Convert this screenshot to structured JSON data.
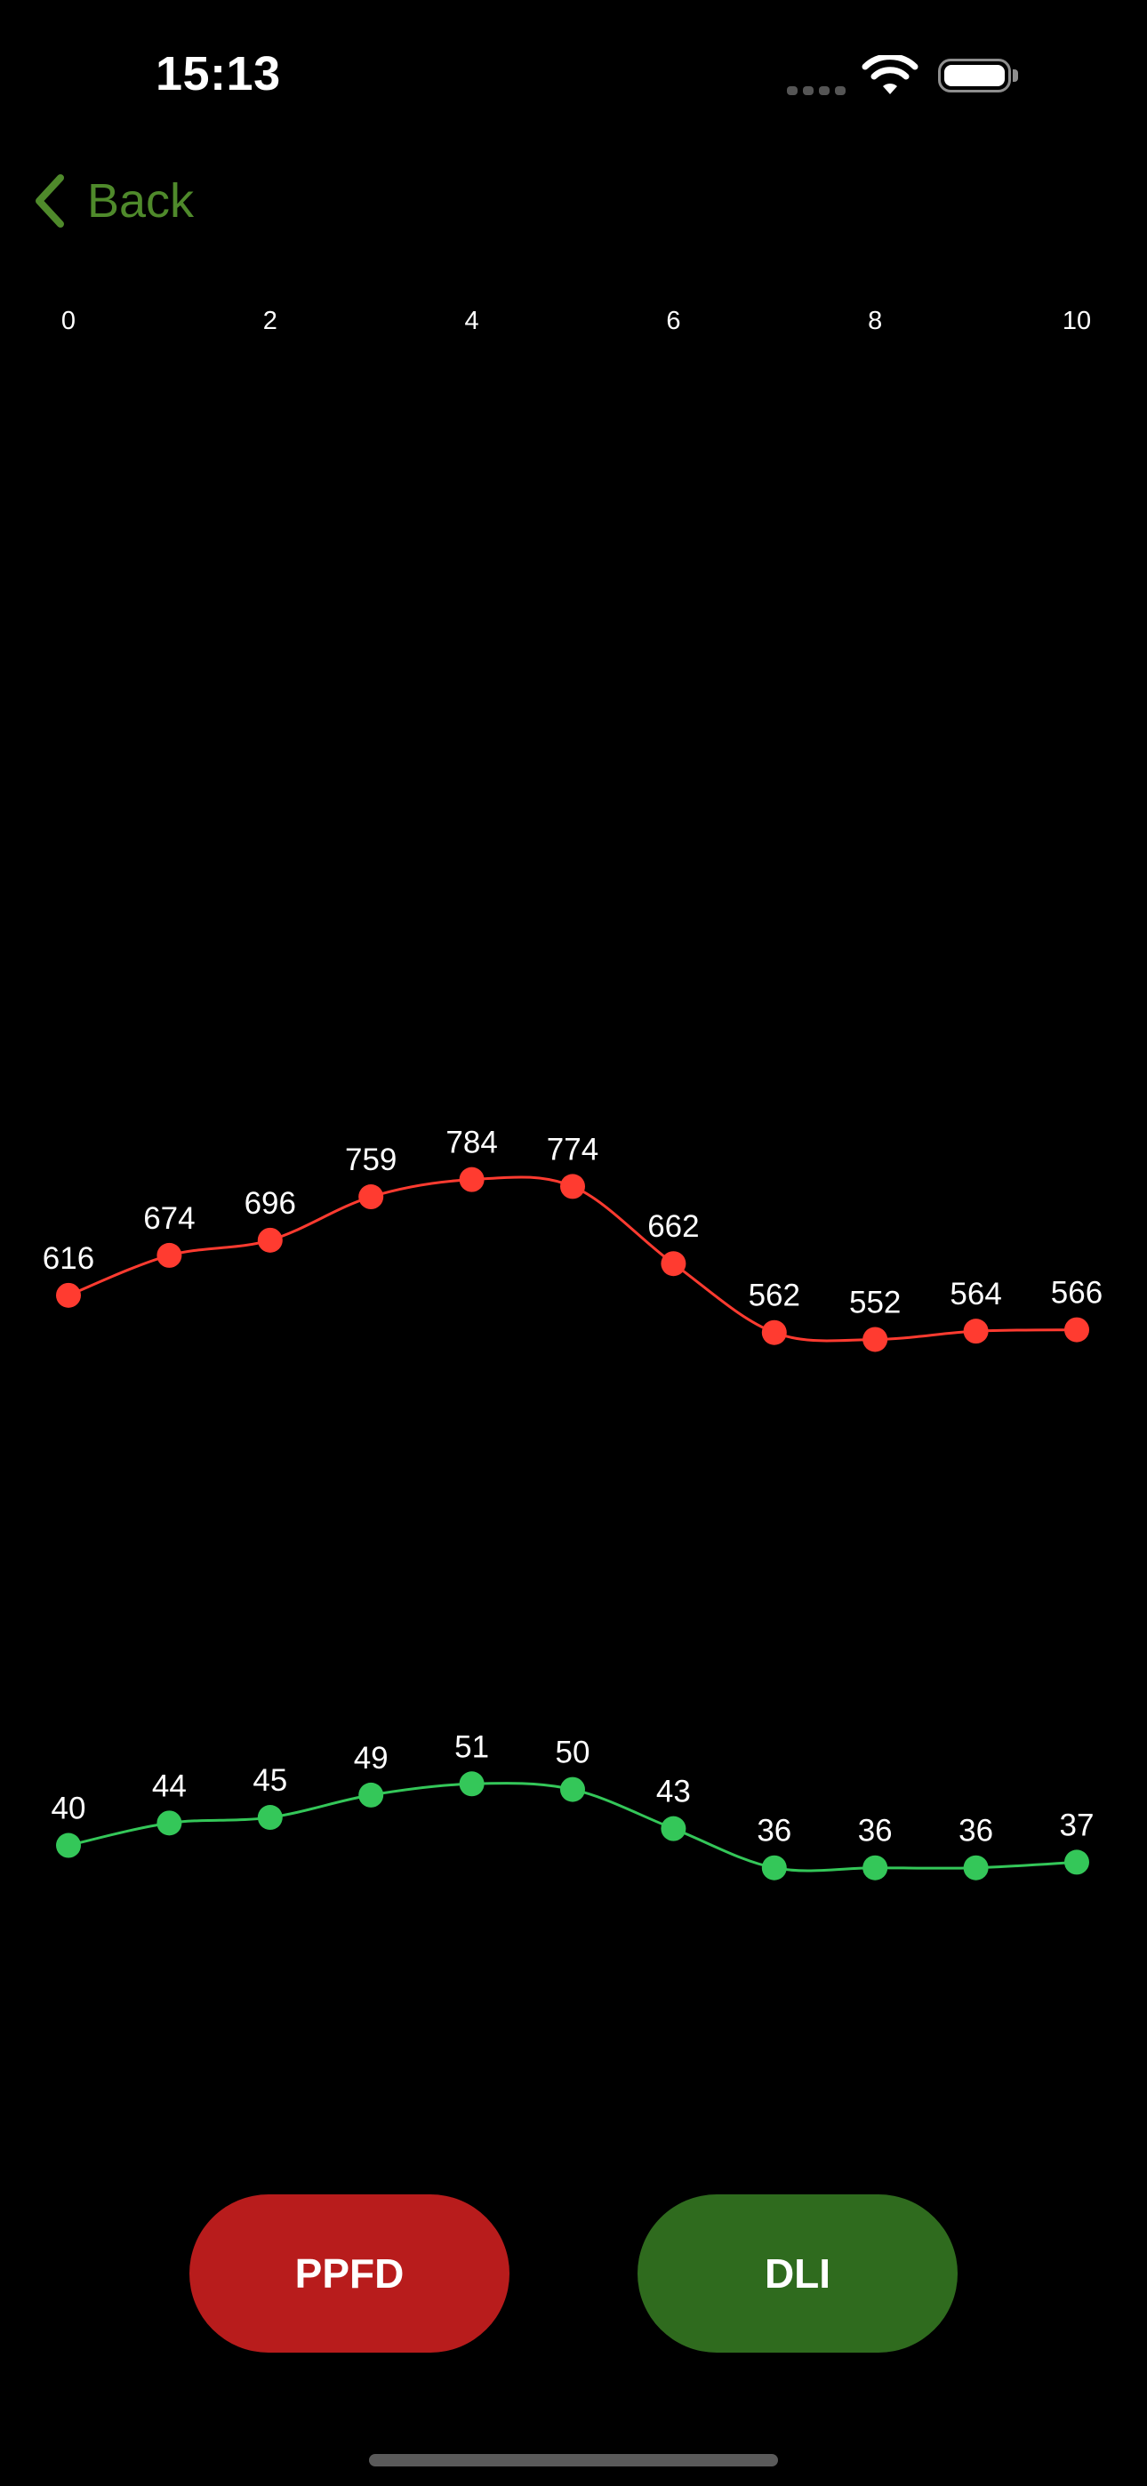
{
  "status_bar": {
    "time": "15:13",
    "icons": [
      "cellular-signal-icon",
      "wifi-icon",
      "battery-icon"
    ]
  },
  "nav": {
    "back_label": "Back",
    "back_icon": "chevron-left-icon",
    "accent_color": "#4f8a2b"
  },
  "chart_data": {
    "type": "line",
    "x_ticks": [
      0,
      2,
      4,
      6,
      8,
      10
    ],
    "xlim": [
      0,
      10
    ],
    "x": [
      0,
      1,
      2,
      3,
      4,
      5,
      6,
      7,
      8,
      9,
      10
    ],
    "smooth": true,
    "show_data_labels": true,
    "grid": false,
    "series": [
      {
        "color": "#ff3b30",
        "values": [
          616,
          674,
          696,
          759,
          784,
          774,
          662,
          562,
          552,
          564,
          566
        ]
      },
      {
        "color": "#34c759",
        "values": [
          40,
          44,
          45,
          49,
          51,
          50,
          43,
          36,
          36,
          36,
          37
        ]
      }
    ]
  },
  "buttons": {
    "ppfd": {
      "label": "PPFD",
      "color": "#b81c1c"
    },
    "dli": {
      "label": "DLI",
      "color": "#2f6b1e"
    }
  }
}
